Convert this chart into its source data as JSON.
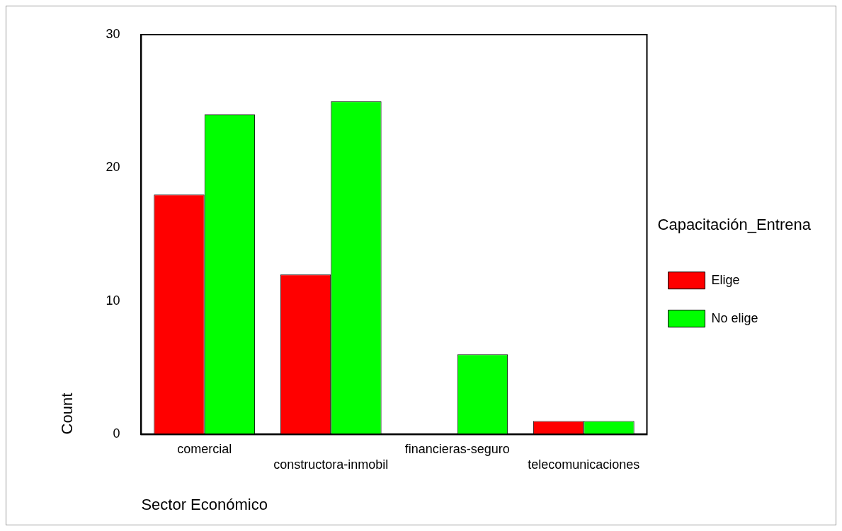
{
  "chart_data": {
    "type": "bar",
    "xlabel": "Sector Económico",
    "ylabel": "Count",
    "legend_title": "Capacitación_Entrena",
    "categories": [
      "comercial",
      "constructora-inmobil",
      "financieras-seguro",
      "telecomunicaciones"
    ],
    "series": [
      {
        "name": "Elige",
        "color": "#ff0000",
        "values": [
          18,
          12,
          null,
          1
        ]
      },
      {
        "name": "No elige",
        "color": "#00ff00",
        "values": [
          24,
          25,
          6,
          1
        ]
      }
    ],
    "ylim": [
      0,
      30
    ],
    "yticks": [
      0,
      10,
      20,
      30
    ],
    "grid": false,
    "legend": "right"
  }
}
